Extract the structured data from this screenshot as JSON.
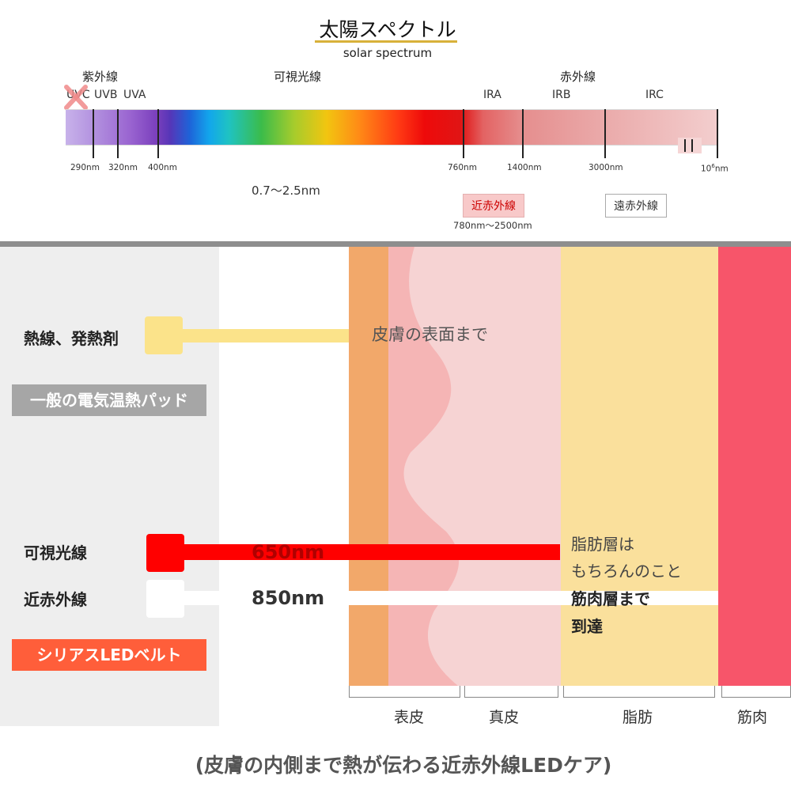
{
  "top": {
    "title": "太陽スペクトル",
    "subtitle": "solar spectrum",
    "categories": {
      "uv": "紫外線",
      "visible": "可視光線",
      "infrared": "赤外線"
    },
    "sub_bands": {
      "uvc": "UVC",
      "uvb": "UVB",
      "uva": "UVA",
      "ira": "IRA",
      "irb": "IRB",
      "irc": "IRC"
    },
    "ticks": [
      "290nm",
      "320nm",
      "400nm",
      "760nm",
      "1400nm",
      "3000nm"
    ],
    "tick_last_base": "10",
    "tick_last_exp": "6",
    "tick_last_unit": "nm",
    "range_note": "0.7～2.5nm",
    "near_ir_label": "近赤外線",
    "near_ir_range": "780nm～2500nm",
    "far_ir_label": "遠赤外線",
    "colors": {
      "underline": "#d8b13a",
      "cross": "#f08a8a"
    }
  },
  "bottom": {
    "rows": {
      "heat": "熱線、発熱剤",
      "heat_tag": "一般の電気温熱パッド",
      "visible": "可視光線",
      "nir": "近赤外線",
      "nir_tag": "シリアスLEDベルト"
    },
    "wavelengths": {
      "visible": "650nm",
      "nir": "850nm"
    },
    "skin_surface": "皮膚の表面まで",
    "fat_note": [
      "脂肪層は",
      "もちろんのこと",
      "筋肉層まで",
      "到達"
    ],
    "layers": [
      "表皮",
      "真皮",
      "脂肪",
      "筋肉"
    ],
    "caption": "(皮膚の内側まで熱が伝わる近赤外線LEDケア)",
    "colors": {
      "epidermis": "#f2a86a",
      "dermis": "#f6d3d3",
      "fat": "#fae09c",
      "muscle": "#f7556a",
      "heat_beam": "#fbe38a",
      "visible_beam": "#ff0000",
      "nir_beam": "#ffffff",
      "gray_tag": "#a6a6a6",
      "orange_tag": "#ff5e3a"
    }
  }
}
